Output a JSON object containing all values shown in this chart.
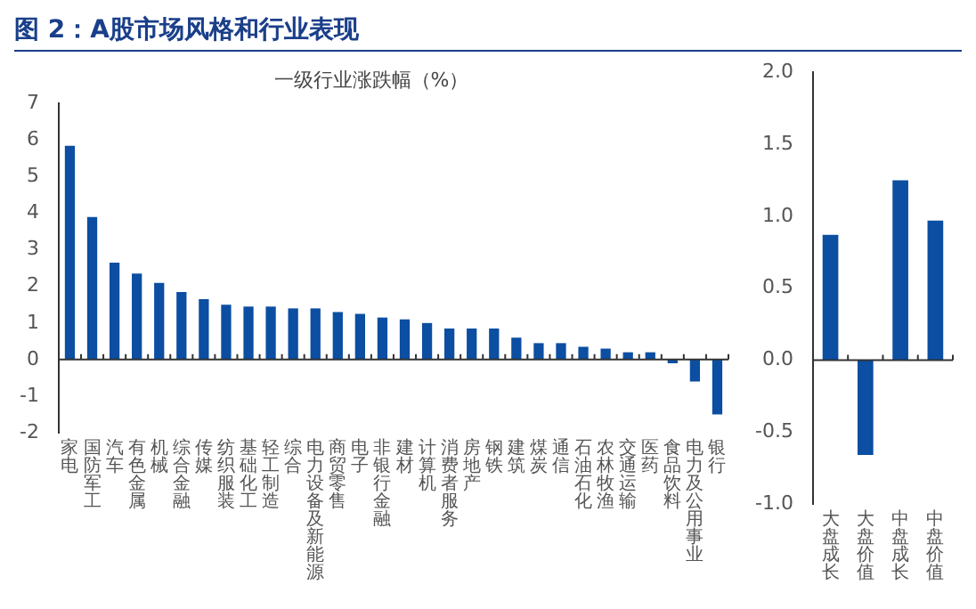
{
  "chart_data": [
    {
      "type": "bar",
      "title": "图 2：A股市场风格和行业表现",
      "subtitle": "一级行业涨跌幅（%）",
      "categories": [
        "家电",
        "国防军工",
        "汽车",
        "有色金属",
        "机械",
        "综合金融",
        "传媒",
        "纺织服装",
        "基础化工",
        "轻工制造",
        "综合",
        "电力设备及新能源",
        "商贸零售",
        "电子",
        "非银行金融",
        "建材",
        "计算机",
        "消费者服务",
        "房地产",
        "钢铁",
        "建筑",
        "煤炭",
        "通信",
        "石油石化",
        "农林牧渔",
        "交通运输",
        "医药",
        "食品饮料",
        "电力及公用事业",
        "银行"
      ],
      "values": [
        5.85,
        3.9,
        2.65,
        2.35,
        2.1,
        1.85,
        1.65,
        1.5,
        1.45,
        1.45,
        1.4,
        1.4,
        1.3,
        1.25,
        1.15,
        1.1,
        1.0,
        0.85,
        0.85,
        0.85,
        0.6,
        0.45,
        0.45,
        0.35,
        0.3,
        0.2,
        0.2,
        -0.1,
        -0.6,
        -1.5
      ],
      "color": "#0b4ea2",
      "ylim": [
        -2,
        7
      ],
      "yticks": [
        -2,
        -1,
        0,
        1,
        2,
        3,
        4,
        5,
        6,
        7
      ],
      "legend": false
    },
    {
      "type": "bar",
      "categories": [
        "大盘成长",
        "大盘价值",
        "中盘成长",
        "中盘价值"
      ],
      "values": [
        0.87,
        -0.66,
        1.25,
        0.97
      ],
      "color": "#0b4ea2",
      "ylim": [
        -1,
        2
      ],
      "yticks": [
        {
          "value": -1,
          "label": "-1.0"
        },
        {
          "value": -0.5,
          "label": "-0.5"
        },
        {
          "value": 0,
          "label": "0.0"
        },
        {
          "value": 0.5,
          "label": "0.5"
        },
        {
          "value": 1,
          "label": "1.0"
        },
        {
          "value": 1.5,
          "label": "1.5"
        },
        {
          "value": 2,
          "label": "2.0"
        }
      ],
      "legend": false
    }
  ]
}
